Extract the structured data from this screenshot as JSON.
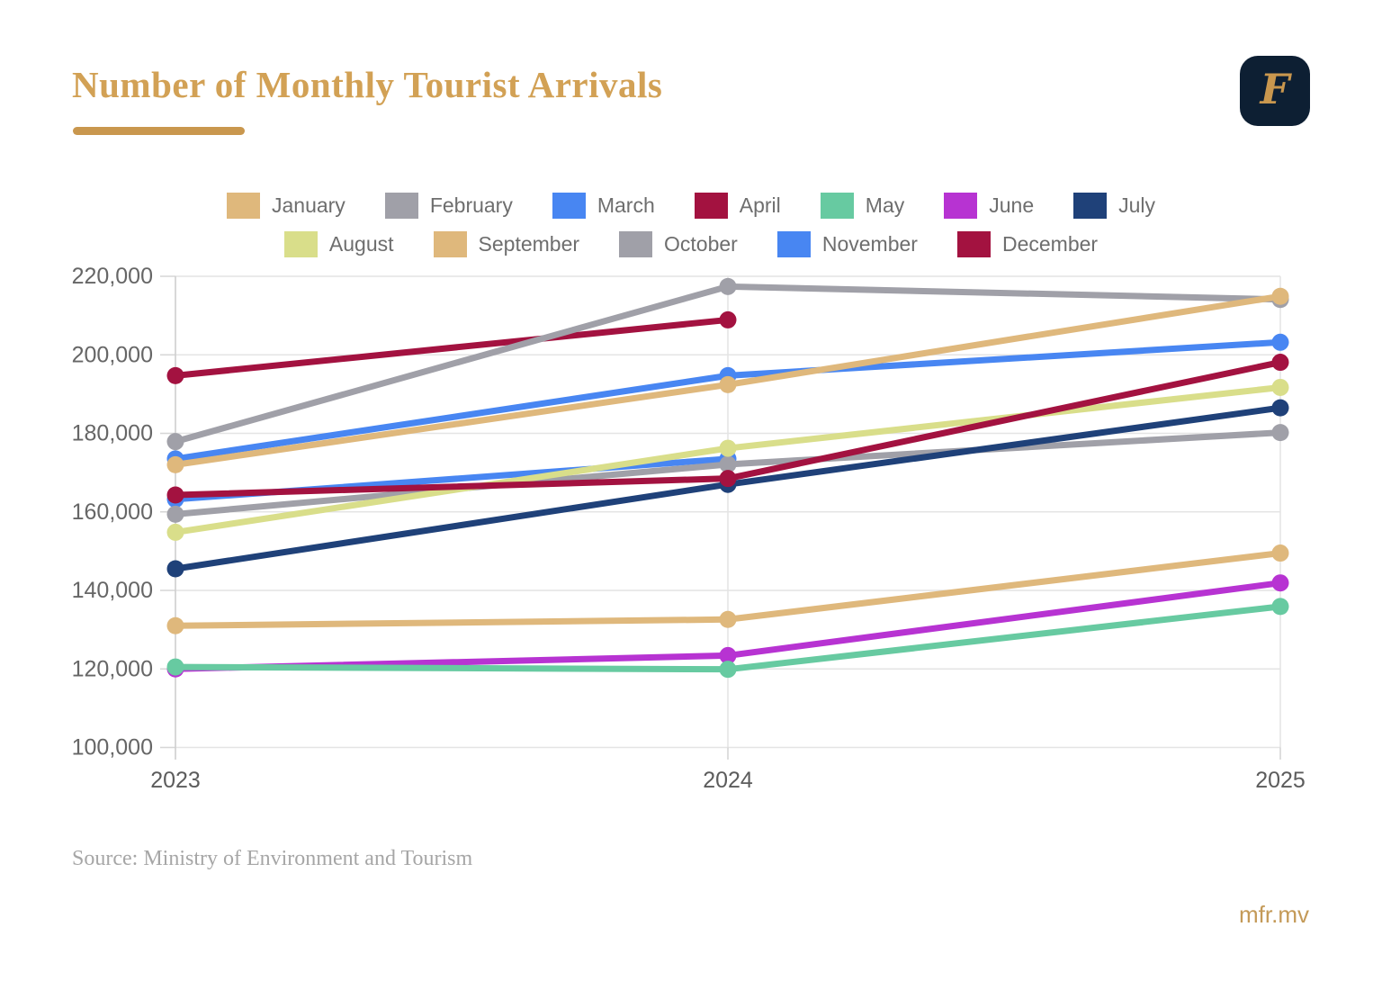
{
  "header": {
    "title": "Number of Monthly Tourist Arrivals",
    "logo_letter": "F",
    "logo_bg_color": "#0D1F33",
    "logo_letter_color": "#C9974E",
    "accent_color": "#D2A155"
  },
  "source_note": "Source: Ministry of Environment and Tourism",
  "footer": {
    "site": "mfr.mv",
    "color": "#C49A58"
  },
  "chart_data": {
    "type": "line",
    "title": "Number of Monthly Tourist Arrivals",
    "x": [
      "2023",
      "2024",
      "2025"
    ],
    "xlabel": "",
    "ylabel": "",
    "ylim": [
      100000,
      220000
    ],
    "grid": true,
    "legend_position": "top",
    "y_ticks": [
      {
        "label": "220,000",
        "value": 220000
      },
      {
        "label": "200,000",
        "value": 200000
      },
      {
        "label": "180,000",
        "value": 180000
      },
      {
        "label": "160,000",
        "value": 160000
      },
      {
        "label": "140,000",
        "value": 140000
      },
      {
        "label": "120,000",
        "value": 120000
      },
      {
        "label": "100,000",
        "value": 100000
      }
    ],
    "series": [
      {
        "name": "January",
        "color": "#DFB87C",
        "values": [
          172000,
          192400,
          214900
        ]
      },
      {
        "name": "February",
        "color": "#A0A0A8",
        "values": [
          177900,
          217400,
          214100
        ]
      },
      {
        "name": "March",
        "color": "#4886F2",
        "values": [
          173500,
          194700,
          203200
        ]
      },
      {
        "name": "April",
        "color": "#A31240",
        "values": [
          164300,
          168500,
          198100
        ]
      },
      {
        "name": "May",
        "color": "#67CAA1",
        "values": [
          120500,
          119900,
          135900
        ]
      },
      {
        "name": "June",
        "color": "#B733D2",
        "values": [
          120000,
          123400,
          141900
        ]
      },
      {
        "name": "July",
        "color": "#1F4179",
        "values": [
          145500,
          167000,
          186500
        ]
      },
      {
        "name": "August",
        "color": "#D9DE8A",
        "values": [
          154800,
          176200,
          191700
        ]
      },
      {
        "name": "September",
        "color": "#DFB87C",
        "values": [
          131000,
          132600,
          149500
        ]
      },
      {
        "name": "October",
        "color": "#A0A0A8",
        "values": [
          159400,
          172100,
          180200
        ]
      },
      {
        "name": "November",
        "color": "#4886F2",
        "values": [
          163200,
          173500,
          null
        ]
      },
      {
        "name": "December",
        "color": "#A31240",
        "values": [
          194700,
          208900,
          null
        ]
      }
    ]
  }
}
